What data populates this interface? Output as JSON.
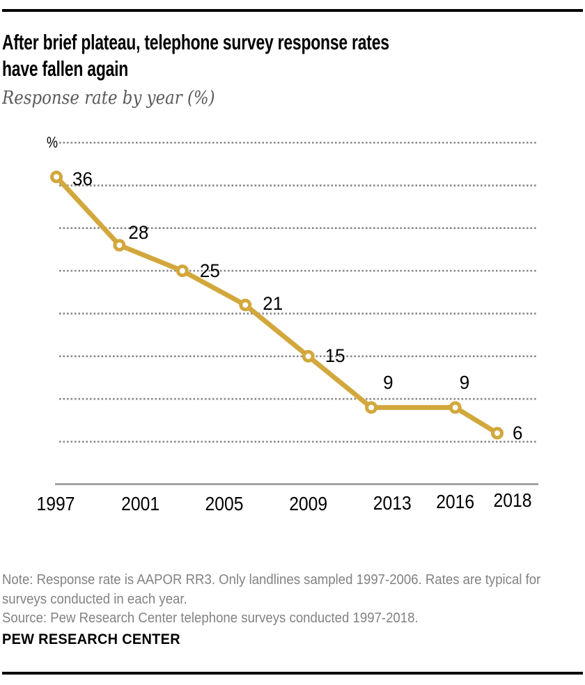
{
  "header": {
    "title_line1": "After brief plateau, telephone survey response rates",
    "title_line2": "have fallen again",
    "subtitle": "Response rate by year (%)"
  },
  "chart_data": {
    "type": "line",
    "title": "After brief plateau, telephone survey response rates have fallen again",
    "subtitle": "Response rate by year (%)",
    "x": [
      1997,
      2000,
      2003,
      2006,
      2009,
      2012,
      2016,
      2018
    ],
    "values": [
      36,
      28,
      25,
      21,
      15,
      9,
      9,
      6
    ],
    "point_labels": [
      "36",
      "28",
      "25",
      "21",
      "15",
      "9",
      "9",
      "6"
    ],
    "x_tick_labels": [
      "1997",
      "2001",
      "2005",
      "2009",
      "2013",
      "2016",
      "2018"
    ],
    "x_tick_years": [
      1997,
      2001,
      2005,
      2009,
      2013,
      2016,
      2018
    ],
    "ylabel": "%",
    "xlabel": "",
    "ylim": [
      0,
      40
    ],
    "xlim": [
      1997,
      2018
    ],
    "gridlines": [
      40,
      35,
      30,
      25,
      20,
      15,
      10,
      5
    ],
    "grid_style": "dotted-horizontal",
    "legend": "none",
    "line_color": "#D2A73C",
    "marker_style": "open-circle-white-fill",
    "grid_color": "#878787",
    "axis_color": "#9c9c9c"
  },
  "footer": {
    "note_line1": "Note: Response rate is AAPOR RR3. Only landlines sampled 1997-2006. Rates are typical for",
    "note_line2": "surveys conducted in each year.",
    "source": "Source: Pew Research Center telephone surveys conducted 1997-2018.",
    "brand": "PEW RESEARCH CENTER"
  }
}
